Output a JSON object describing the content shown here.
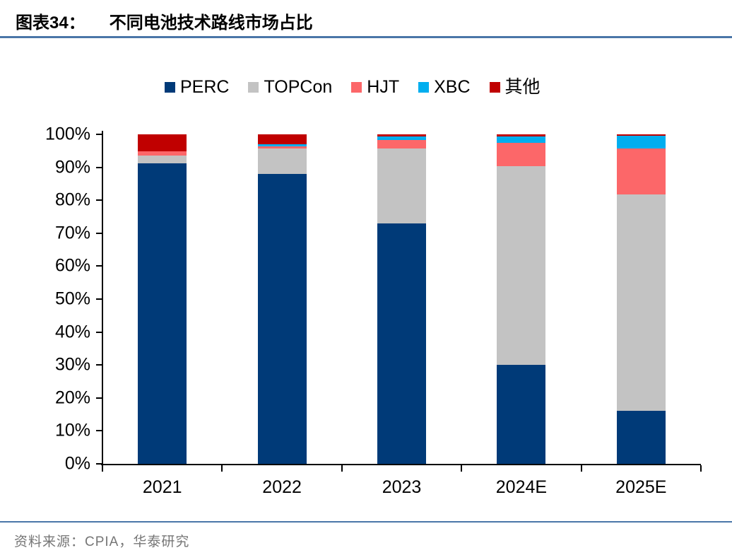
{
  "figure": {
    "label": "图表34：",
    "title": "不同电池技术路线市场占比",
    "source": "资料来源：CPIA，华泰研究"
  },
  "chart_data": {
    "type": "bar",
    "subtype": "stacked-100-percent",
    "title": "不同电池技术路线市场占比",
    "categories": [
      "2021",
      "2022",
      "2023",
      "2024E",
      "2025E"
    ],
    "series": [
      {
        "name": "PERC",
        "color": "#003a78",
        "values": [
          91.2,
          88.0,
          73.0,
          30.0,
          16.0
        ]
      },
      {
        "name": "TOPCon",
        "color": "#c3c3c3",
        "values": [
          2.3,
          7.7,
          22.8,
          60.4,
          65.7
        ]
      },
      {
        "name": "HJT",
        "color": "#fc6769",
        "values": [
          1.3,
          0.6,
          2.4,
          7.0,
          14.0
        ]
      },
      {
        "name": "XBC",
        "color": "#00aeef",
        "values": [
          0.0,
          0.6,
          1.2,
          2.0,
          3.9
        ]
      },
      {
        "name": "其他",
        "color": "#c00000",
        "values": [
          5.2,
          3.1,
          0.6,
          0.6,
          0.4
        ]
      }
    ],
    "xlabel": "",
    "ylabel": "",
    "ylim": [
      0,
      100
    ],
    "yticks": [
      "100%",
      "90%",
      "80%",
      "70%",
      "60%",
      "50%",
      "40%",
      "30%",
      "20%",
      "10%",
      "0%"
    ],
    "grid": false,
    "legend_position": "top"
  },
  "accent": {
    "rule_color": "#4a76a8",
    "source_text_color": "#767676",
    "axis_color": "#000000"
  }
}
